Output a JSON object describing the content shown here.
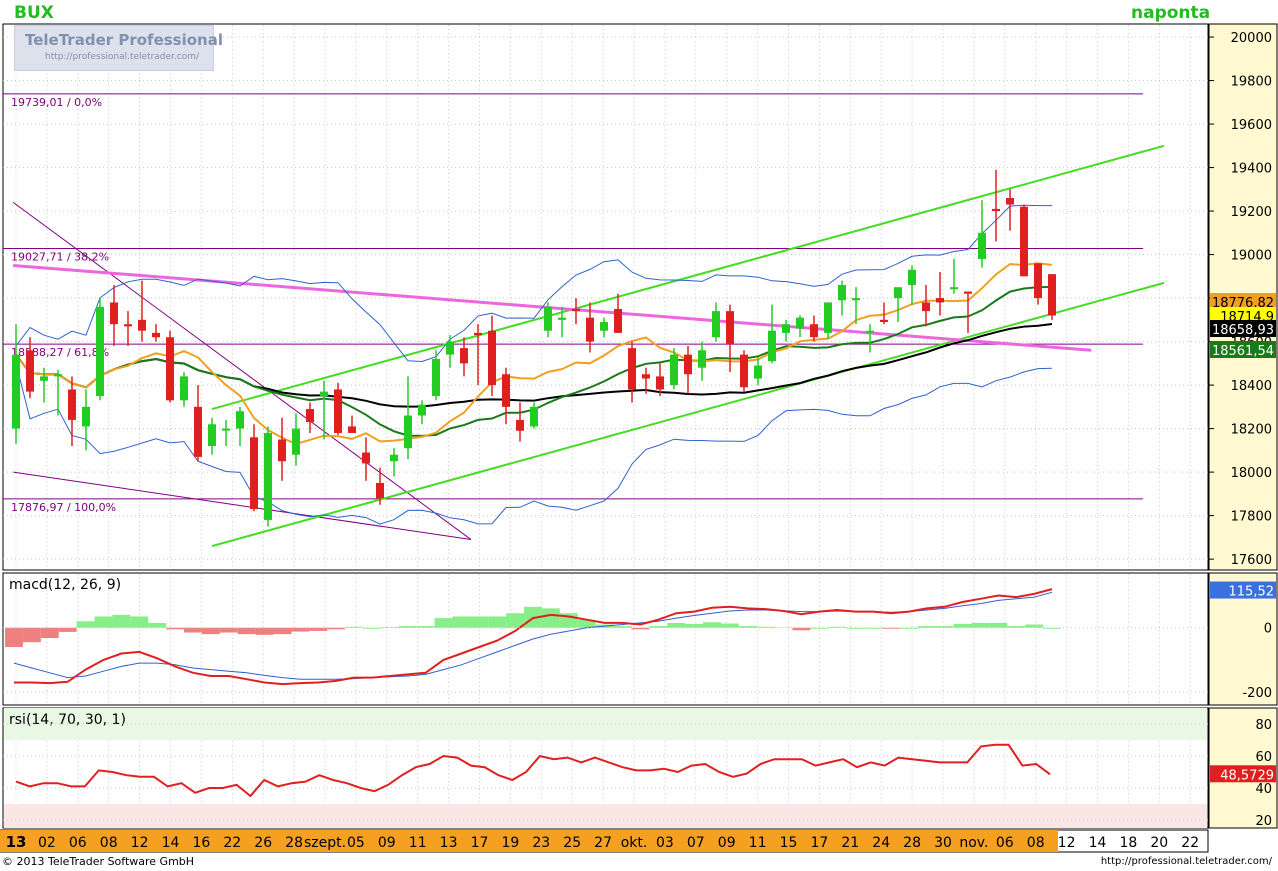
{
  "header": {
    "symbol": "BUX",
    "period": "naponta",
    "brand_name": "TeleTrader Professional",
    "brand_url": "http://professional.teletrader.com/"
  },
  "footer": {
    "copyright": "© 2013 TeleTrader Software GmbH",
    "url": "http://professional.teletrader.com/"
  },
  "colors": {
    "up": "#22cc22",
    "down": "#e02020",
    "channel": "#44dd22",
    "pink_line": "#ee66dd",
    "fib": "#800080",
    "ma_orange": "#f0a020",
    "ma_black": "#000000",
    "ma_green": "#1a7a1a",
    "bollinger": "#3060d0",
    "axis_bg": "#fff8d0",
    "date_bg": "#f5a020"
  },
  "chart_data": [
    {
      "type": "candlestick",
      "name": "price",
      "ylim": [
        17550,
        20060
      ],
      "yticks": [
        "20000",
        "19800",
        "19600",
        "19400",
        "19200",
        "19000",
        "18800",
        "18600",
        "18400",
        "18200",
        "18000",
        "17800",
        "17600"
      ],
      "x_labels": [
        "13",
        "02",
        "06",
        "08",
        "12",
        "14",
        "16",
        "22",
        "26",
        "28",
        "szept.",
        "05",
        "09",
        "11",
        "13",
        "17",
        "19",
        "23",
        "25",
        "27",
        "okt.",
        "03",
        "07",
        "09",
        "11",
        "15",
        "17",
        "21",
        "24",
        "28",
        "30",
        "nov.",
        "06",
        "08",
        "12",
        "14",
        "18",
        "20",
        "22"
      ],
      "candles": [
        {
          "o": 18200,
          "h": 18680,
          "l": 18130,
          "c": 18540
        },
        {
          "o": 18560,
          "h": 18620,
          "l": 18340,
          "c": 18370
        },
        {
          "o": 18420,
          "h": 18480,
          "l": 18320,
          "c": 18440
        },
        {
          "o": 18440,
          "h": 18470,
          "l": 18260,
          "c": 18450
        },
        {
          "o": 18380,
          "h": 18440,
          "l": 18120,
          "c": 18240
        },
        {
          "o": 18210,
          "h": 18380,
          "l": 18100,
          "c": 18300
        },
        {
          "o": 18350,
          "h": 18800,
          "l": 18330,
          "c": 18760
        },
        {
          "o": 18780,
          "h": 18860,
          "l": 18580,
          "c": 18680
        },
        {
          "o": 18680,
          "h": 18740,
          "l": 18580,
          "c": 18670
        },
        {
          "o": 18700,
          "h": 18880,
          "l": 18600,
          "c": 18650
        },
        {
          "o": 18640,
          "h": 18680,
          "l": 18600,
          "c": 18620
        },
        {
          "o": 18620,
          "h": 18650,
          "l": 18320,
          "c": 18330
        },
        {
          "o": 18330,
          "h": 18460,
          "l": 18300,
          "c": 18440
        },
        {
          "o": 18300,
          "h": 18400,
          "l": 18050,
          "c": 18070
        },
        {
          "o": 18120,
          "h": 18250,
          "l": 18080,
          "c": 18220
        },
        {
          "o": 18200,
          "h": 18240,
          "l": 18120,
          "c": 18200
        },
        {
          "o": 18200,
          "h": 18300,
          "l": 18120,
          "c": 18280
        },
        {
          "o": 18160,
          "h": 18220,
          "l": 17820,
          "c": 17830
        },
        {
          "o": 17780,
          "h": 18210,
          "l": 17750,
          "c": 18180
        },
        {
          "o": 18150,
          "h": 18250,
          "l": 17960,
          "c": 18050
        },
        {
          "o": 18080,
          "h": 18270,
          "l": 18030,
          "c": 18200
        },
        {
          "o": 18290,
          "h": 18320,
          "l": 18180,
          "c": 18230
        },
        {
          "o": 18350,
          "h": 18420,
          "l": 18150,
          "c": 18370
        },
        {
          "o": 18380,
          "h": 18410,
          "l": 18170,
          "c": 18180
        },
        {
          "o": 18210,
          "h": 18260,
          "l": 18180,
          "c": 18180
        },
        {
          "o": 18090,
          "h": 18160,
          "l": 17960,
          "c": 18040
        },
        {
          "o": 17950,
          "h": 18020,
          "l": 17850,
          "c": 17880
        },
        {
          "o": 18050,
          "h": 18110,
          "l": 17980,
          "c": 18080
        },
        {
          "o": 18110,
          "h": 18440,
          "l": 18060,
          "c": 18260
        },
        {
          "o": 18260,
          "h": 18330,
          "l": 18220,
          "c": 18310
        },
        {
          "o": 18350,
          "h": 18560,
          "l": 18330,
          "c": 18520
        },
        {
          "o": 18540,
          "h": 18630,
          "l": 18480,
          "c": 18600
        },
        {
          "o": 18570,
          "h": 18620,
          "l": 18440,
          "c": 18500
        },
        {
          "o": 18640,
          "h": 18680,
          "l": 18400,
          "c": 18630
        },
        {
          "o": 18650,
          "h": 18720,
          "l": 18350,
          "c": 18400
        },
        {
          "o": 18450,
          "h": 18480,
          "l": 18220,
          "c": 18300
        },
        {
          "o": 18240,
          "h": 18320,
          "l": 18140,
          "c": 18190
        },
        {
          "o": 18210,
          "h": 18320,
          "l": 18200,
          "c": 18300
        },
        {
          "o": 18650,
          "h": 18780,
          "l": 18620,
          "c": 18760
        },
        {
          "o": 18700,
          "h": 18760,
          "l": 18620,
          "c": 18710
        },
        {
          "o": 18750,
          "h": 18800,
          "l": 18680,
          "c": 18740
        },
        {
          "o": 18710,
          "h": 18780,
          "l": 18550,
          "c": 18600
        },
        {
          "o": 18650,
          "h": 18710,
          "l": 18620,
          "c": 18690
        },
        {
          "o": 18750,
          "h": 18820,
          "l": 18640,
          "c": 18640
        },
        {
          "o": 18570,
          "h": 18600,
          "l": 18320,
          "c": 18380
        },
        {
          "o": 18450,
          "h": 18480,
          "l": 18360,
          "c": 18430
        },
        {
          "o": 18440,
          "h": 18500,
          "l": 18350,
          "c": 18380
        },
        {
          "o": 18400,
          "h": 18570,
          "l": 18380,
          "c": 18540
        },
        {
          "o": 18540,
          "h": 18580,
          "l": 18360,
          "c": 18450
        },
        {
          "o": 18480,
          "h": 18600,
          "l": 18420,
          "c": 18560
        },
        {
          "o": 18620,
          "h": 18780,
          "l": 18600,
          "c": 18740
        },
        {
          "o": 18740,
          "h": 18770,
          "l": 18460,
          "c": 18590
        },
        {
          "o": 18540,
          "h": 18560,
          "l": 18370,
          "c": 18390
        },
        {
          "o": 18430,
          "h": 18530,
          "l": 18400,
          "c": 18490
        },
        {
          "o": 18510,
          "h": 18770,
          "l": 18500,
          "c": 18650
        },
        {
          "o": 18640,
          "h": 18700,
          "l": 18600,
          "c": 18680
        },
        {
          "o": 18660,
          "h": 18720,
          "l": 18620,
          "c": 18710
        },
        {
          "o": 18680,
          "h": 18720,
          "l": 18600,
          "c": 18620
        },
        {
          "o": 18640,
          "h": 18780,
          "l": 18610,
          "c": 18780
        },
        {
          "o": 18790,
          "h": 18880,
          "l": 18720,
          "c": 18860
        },
        {
          "o": 18790,
          "h": 18850,
          "l": 18680,
          "c": 18800
        },
        {
          "o": 18650,
          "h": 18680,
          "l": 18550,
          "c": 18650
        },
        {
          "o": 18700,
          "h": 18780,
          "l": 18680,
          "c": 18690
        },
        {
          "o": 18800,
          "h": 18830,
          "l": 18690,
          "c": 18850
        },
        {
          "o": 18860,
          "h": 18950,
          "l": 18770,
          "c": 18930
        },
        {
          "o": 18780,
          "h": 18860,
          "l": 18670,
          "c": 18740
        },
        {
          "o": 18800,
          "h": 18920,
          "l": 18720,
          "c": 18780
        },
        {
          "o": 18850,
          "h": 18980,
          "l": 18820,
          "c": 18850
        },
        {
          "o": 18830,
          "h": 18830,
          "l": 18640,
          "c": 18820
        },
        {
          "o": 18980,
          "h": 19250,
          "l": 18940,
          "c": 19100
        },
        {
          "o": 19210,
          "h": 19390,
          "l": 19060,
          "c": 19200
        },
        {
          "o": 19260,
          "h": 19300,
          "l": 19110,
          "c": 19230
        },
        {
          "o": 19220,
          "h": 19230,
          "l": 18910,
          "c": 18900
        },
        {
          "o": 18960,
          "h": 18960,
          "l": 18770,
          "c": 18800
        },
        {
          "o": 18910,
          "h": 18910,
          "l": 18700,
          "c": 18720
        }
      ],
      "fib_levels": [
        {
          "value": 19739.01,
          "label": "19739,01 / 0,0%"
        },
        {
          "value": 19027.71,
          "label": "19027,71 / 38,2%"
        },
        {
          "value": 18588.27,
          "label": "18588,27 / 61,8%"
        },
        {
          "value": 17876.97,
          "label": "17876,97 / 100,0%"
        }
      ],
      "last_values": [
        {
          "value": "18776,82",
          "color": "#f0a020"
        },
        {
          "value": "18714,9",
          "color": "#ffff00"
        },
        {
          "value": "18658,93",
          "color": "#000000"
        },
        {
          "value": "18561,54",
          "color": "#1a7a1a"
        }
      ]
    },
    {
      "type": "line",
      "name": "macd",
      "label": "macd(12, 26, 9)",
      "ylim": [
        -240,
        170
      ],
      "yticks": [
        "0",
        "-200"
      ],
      "last_value": "115,52",
      "macd": [
        -170,
        -170,
        -172,
        -168,
        -130,
        -100,
        -80,
        -75,
        -95,
        -120,
        -140,
        -150,
        -150,
        -160,
        -170,
        -175,
        -172,
        -170,
        -165,
        -155,
        -155,
        -150,
        -145,
        -140,
        -100,
        -80,
        -60,
        -40,
        -10,
        30,
        40,
        35,
        25,
        15,
        15,
        10,
        25,
        45,
        50,
        62,
        65,
        60,
        58,
        52,
        42,
        50,
        55,
        50,
        50,
        45,
        50,
        60,
        65,
        80,
        90,
        100,
        95,
        105,
        120
      ],
      "signal": [
        -110,
        -125,
        -140,
        -155,
        -150,
        -135,
        -120,
        -110,
        -110,
        -115,
        -125,
        -130,
        -135,
        -140,
        -148,
        -155,
        -160,
        -160,
        -160,
        -158,
        -155,
        -152,
        -150,
        -145,
        -130,
        -115,
        -95,
        -75,
        -55,
        -35,
        -20,
        -10,
        0,
        5,
        10,
        15,
        20,
        30,
        38,
        45,
        52,
        55,
        55,
        53,
        50,
        50,
        52,
        50,
        50,
        48,
        50,
        55,
        60,
        68,
        75,
        85,
        90,
        95,
        110
      ],
      "histogram": [
        -60,
        -45,
        -32,
        -13,
        20,
        35,
        40,
        35,
        15,
        -5,
        -15,
        -20,
        -15,
        -20,
        -22,
        -20,
        -12,
        -10,
        -5,
        3,
        0,
        2,
        5,
        5,
        30,
        35,
        35,
        35,
        45,
        65,
        60,
        45,
        25,
        10,
        5,
        -5,
        5,
        15,
        12,
        17,
        13,
        5,
        3,
        -1,
        -8,
        0,
        3,
        0,
        0,
        -3,
        0,
        5,
        5,
        12,
        15,
        15,
        5,
        10,
        0
      ]
    },
    {
      "type": "line",
      "name": "rsi",
      "label": "rsi(14, 70, 30, 1)",
      "ylim": [
        15,
        90
      ],
      "yticks": [
        "80",
        "60",
        "40",
        "20"
      ],
      "last_value": "48,5729",
      "values": [
        44,
        41,
        43,
        43,
        41,
        41,
        51,
        50,
        48,
        47,
        47,
        41,
        43,
        37,
        40,
        40,
        42,
        35,
        45,
        41,
        43,
        44,
        48,
        45,
        43,
        40,
        38,
        42,
        48,
        53,
        55,
        60,
        59,
        54,
        53,
        48,
        45,
        50,
        60,
        58,
        59,
        56,
        59,
        56,
        53,
        51,
        51,
        52,
        50,
        54,
        55,
        50,
        47,
        49,
        55,
        58,
        58,
        58,
        54,
        56,
        58,
        53,
        56,
        54,
        59,
        58,
        57,
        56,
        56,
        56,
        66,
        67,
        67,
        54,
        55,
        48.57
      ]
    }
  ]
}
